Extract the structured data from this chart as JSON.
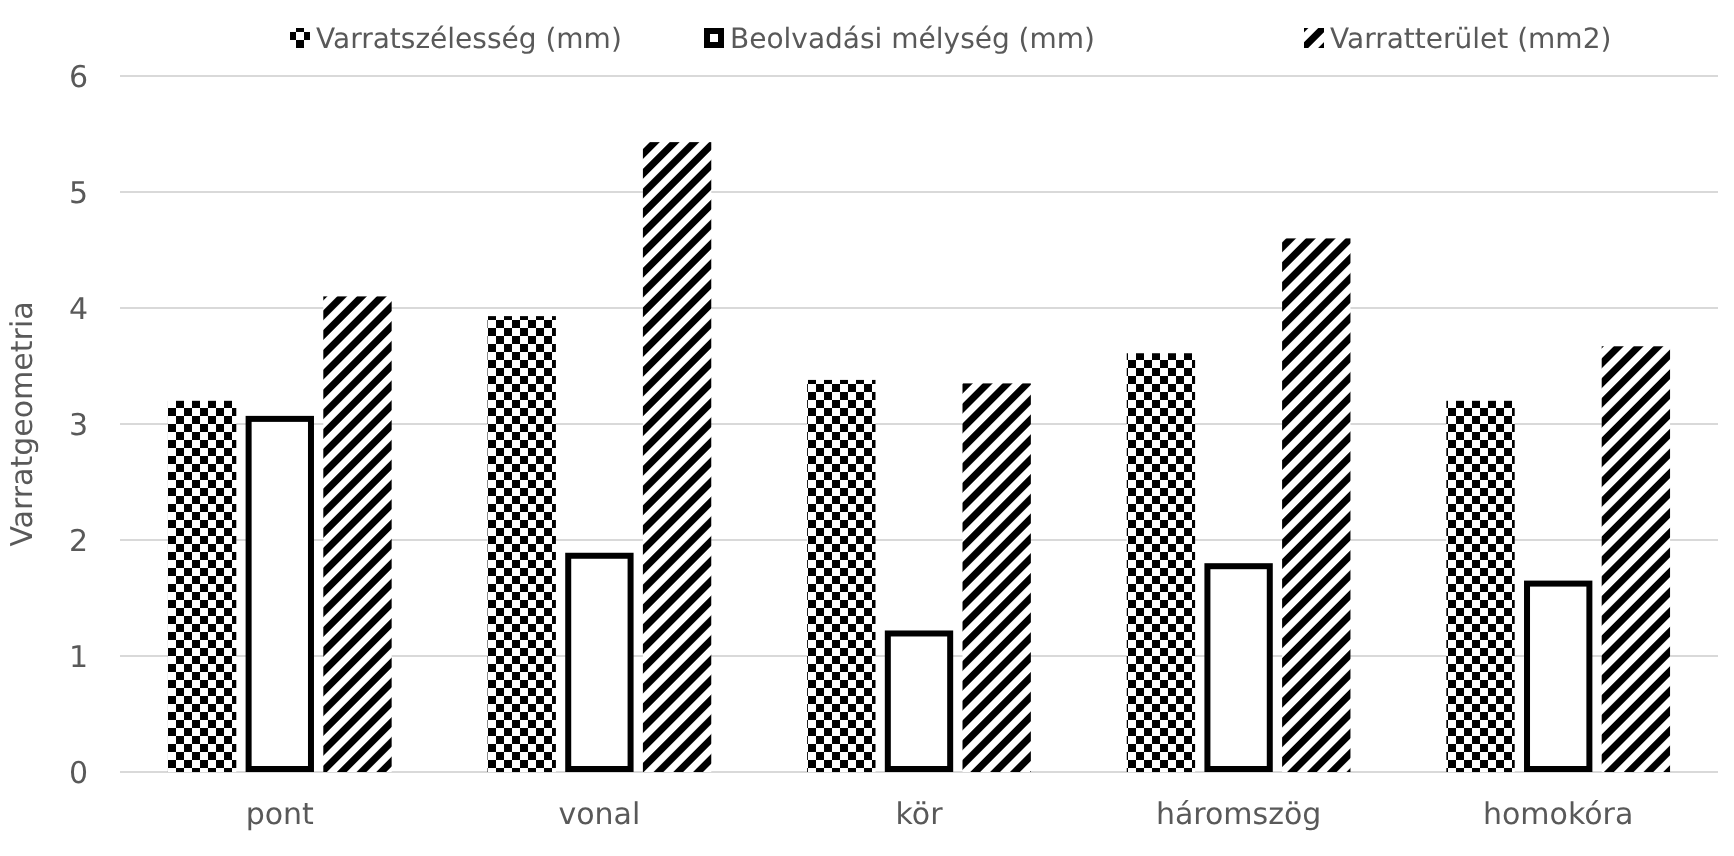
{
  "chart_data": {
    "type": "bar",
    "ylabel": "Varratgeometria",
    "categories": [
      "pont",
      "vonal",
      "kör",
      "háromszög",
      "homokóra"
    ],
    "series": [
      {
        "name": "Varratszélesség (mm)",
        "color": "#000000",
        "values": [
          3.2,
          3.93,
          3.38,
          3.61,
          3.2
        ]
      },
      {
        "name": "Beolvadási mélység (mm)",
        "color": "#000000",
        "values": [
          3.07,
          1.89,
          1.22,
          1.8,
          1.65
        ]
      },
      {
        "name": "Varratterület (mm2)",
        "color": "#000000",
        "values": [
          4.1,
          5.43,
          3.35,
          4.6,
          3.67
        ]
      }
    ],
    "ylim": [
      0,
      6
    ],
    "yticks": [
      0,
      1,
      2,
      3,
      4,
      5,
      6
    ],
    "grid": "y",
    "legend": "top"
  }
}
